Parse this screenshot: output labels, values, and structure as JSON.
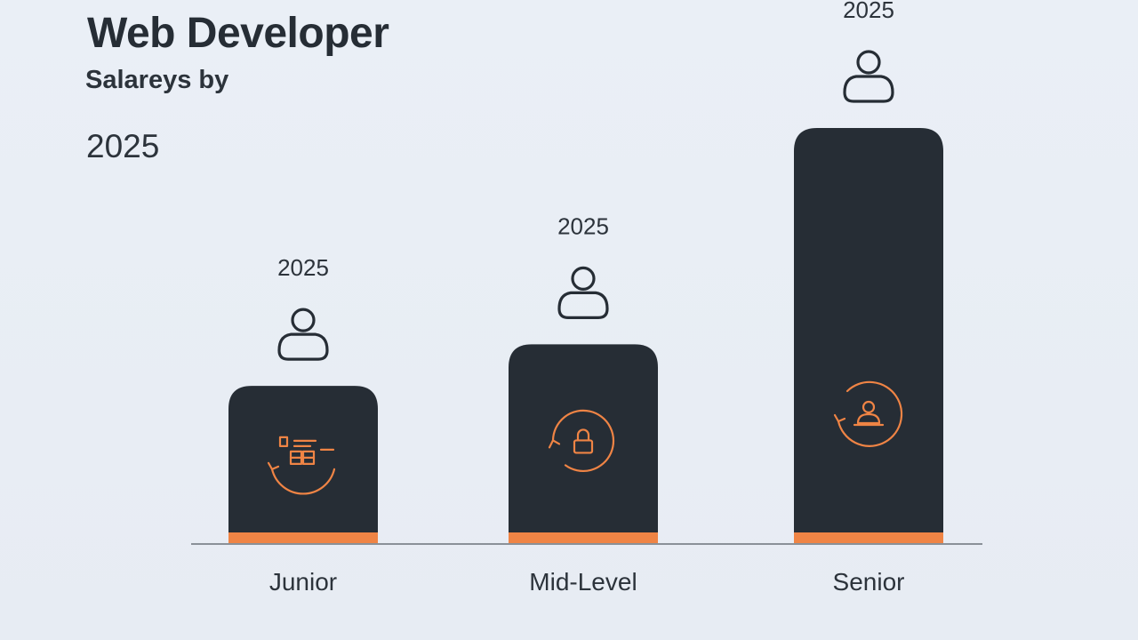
{
  "header": {
    "title": "Web Developer",
    "subtitle": "Salareys by",
    "year": "2025"
  },
  "colors": {
    "bar": "#262d35",
    "accent": "#ef8445",
    "icon_outline": "#262d35",
    "axis": "#8a9098",
    "background": "#e9eef5"
  },
  "chart_data": {
    "type": "bar",
    "title": "Web Developer",
    "subtitle": "Salareys by",
    "xlabel": "",
    "ylabel": "",
    "categories": [
      "Junior",
      "Mid-Level",
      "Senior"
    ],
    "values": [
      38,
      48,
      100
    ],
    "data_labels": [
      "2025",
      "2025",
      "2025"
    ],
    "ylim": [
      0,
      100
    ],
    "grid": false,
    "legend": "none",
    "icons": [
      "person-icon",
      "person-icon",
      "person-icon"
    ],
    "bar_icons": [
      "money-cycle-icon",
      "lock-cycle-icon",
      "person-cycle-icon"
    ]
  }
}
